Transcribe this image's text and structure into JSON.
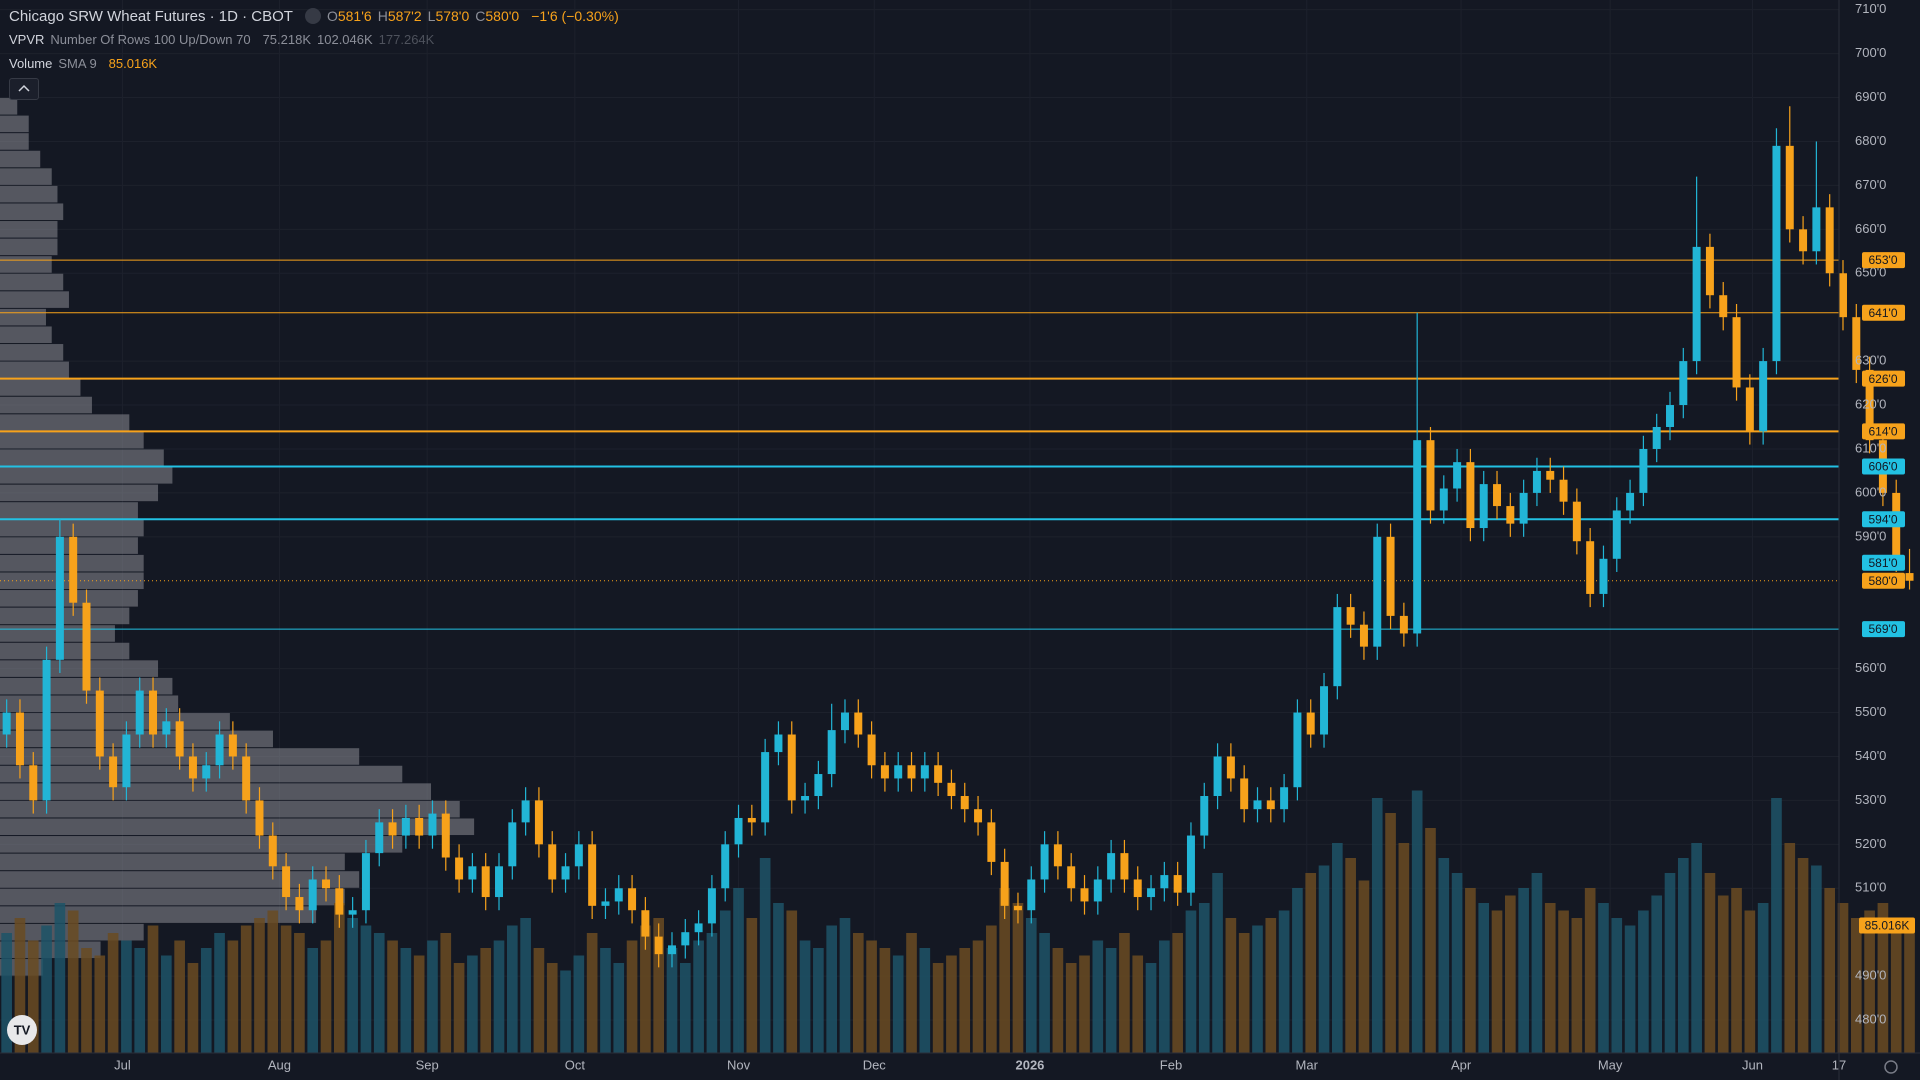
{
  "chart_data": {
    "type": "candlestick",
    "title": "Chicago SRW Wheat Futures · 1D · CBOT",
    "ohlc": [
      {
        "label": "O",
        "value": "581'6"
      },
      {
        "label": "H",
        "value": "587'2"
      },
      {
        "label": "L",
        "value": "578'0"
      },
      {
        "label": "C",
        "value": "580'0"
      }
    ],
    "change": "−1'6 (−0.30%)",
    "up_color": "#22b5d6",
    "down_color": "#f7a21b",
    "grid": true,
    "ylim": [
      472.5,
      712.2
    ],
    "yticks": [
      {
        "value": 710,
        "label": "710'0"
      },
      {
        "value": 700,
        "label": "700'0"
      },
      {
        "value": 690,
        "label": "690'0"
      },
      {
        "value": 680,
        "label": "680'0"
      },
      {
        "value": 670,
        "label": "670'0"
      },
      {
        "value": 660,
        "label": "660'0"
      },
      {
        "value": 650,
        "label": "650'0"
      },
      {
        "value": 630,
        "label": "630'0"
      },
      {
        "value": 620,
        "label": "620'0"
      },
      {
        "value": 610,
        "label": "610'0"
      },
      {
        "value": 600,
        "label": "600'0"
      },
      {
        "value": 590,
        "label": "590'0"
      },
      {
        "value": 560,
        "label": "560'0"
      },
      {
        "value": 550,
        "label": "550'0"
      },
      {
        "value": 540,
        "label": "540'0"
      },
      {
        "value": 530,
        "label": "530'0"
      },
      {
        "value": 520,
        "label": "520'0"
      },
      {
        "value": 510,
        "label": "510'0"
      },
      {
        "value": 490,
        "label": "490'0"
      },
      {
        "value": 480,
        "label": "480'0"
      }
    ],
    "xlim": [
      -0.5,
      137.7
    ],
    "xticks": [
      {
        "value": 8.7,
        "label": "Jul"
      },
      {
        "value": 20.5,
        "label": "Aug"
      },
      {
        "value": 31.6,
        "label": "Sep"
      },
      {
        "value": 42.7,
        "label": "Oct"
      },
      {
        "value": 55,
        "label": "Nov"
      },
      {
        "value": 65.2,
        "label": "Dec"
      },
      {
        "value": 76.9,
        "label": "2026"
      },
      {
        "value": 87.5,
        "label": "Feb"
      },
      {
        "value": 97.7,
        "label": "Mar"
      },
      {
        "value": 109.3,
        "label": "Apr"
      },
      {
        "value": 120.5,
        "label": "May"
      },
      {
        "value": 131.2,
        "label": "Jun"
      },
      {
        "value": 137.7,
        "label": "17"
      }
    ],
    "open": [
      545,
      550,
      538,
      530,
      562,
      590,
      575,
      555,
      540,
      533,
      545,
      555,
      545,
      548,
      540,
      535,
      538,
      545,
      540,
      530,
      522,
      515,
      508,
      505,
      512,
      510,
      504,
      505,
      518,
      525,
      522,
      526,
      522,
      527,
      517,
      512,
      515,
      508,
      515,
      525,
      530,
      520,
      512,
      515,
      520,
      506,
      507,
      510,
      505,
      499,
      495,
      497,
      500,
      502,
      510,
      520,
      526,
      525,
      541,
      545,
      530,
      531,
      536,
      546,
      550,
      545,
      538,
      535,
      538,
      535,
      538,
      534,
      531,
      528,
      525,
      516,
      506,
      505,
      512,
      520,
      515,
      510,
      507,
      512,
      518,
      512,
      508,
      510,
      513,
      509,
      522,
      531,
      540,
      535,
      528,
      530,
      528,
      533,
      550,
      545,
      556,
      574,
      570,
      565,
      590,
      572,
      568,
      612,
      596,
      601,
      607,
      592,
      602,
      597,
      593,
      600,
      605,
      603,
      598,
      589,
      577,
      585,
      596,
      600,
      610,
      615,
      620,
      630,
      656,
      645,
      640,
      624,
      614,
      630,
      679,
      660,
      655,
      665,
      650,
      640,
      628,
      612,
      600,
      581.75
    ],
    "high": [
      553,
      553,
      541,
      565,
      594,
      593,
      578,
      558,
      543,
      548,
      558,
      558,
      551,
      551,
      543,
      541,
      548,
      548,
      543,
      533,
      525,
      518,
      511,
      515,
      515,
      513,
      508,
      521,
      528,
      528,
      529,
      529,
      530,
      530,
      520,
      518,
      518,
      518,
      528,
      533,
      533,
      523,
      518,
      523,
      523,
      510,
      513,
      513,
      508,
      502,
      500,
      503,
      505,
      513,
      523,
      529,
      529,
      544,
      548,
      548,
      534,
      539,
      552,
      553,
      553,
      548,
      541,
      541,
      541,
      541,
      541,
      537,
      534,
      531,
      528,
      519,
      509,
      515,
      523,
      523,
      518,
      513,
      515,
      521,
      521,
      515,
      513,
      516,
      516,
      525,
      534,
      543,
      543,
      538,
      533,
      533,
      536,
      553,
      553,
      559,
      577,
      577,
      573,
      593,
      593,
      575,
      641,
      615,
      604,
      610,
      610,
      605,
      605,
      600,
      603,
      608,
      608,
      606,
      601,
      592,
      588,
      599,
      603,
      613,
      618,
      623,
      633,
      672,
      659,
      648,
      643,
      627,
      633,
      683,
      688,
      663,
      680,
      668,
      653,
      643,
      631,
      615,
      603,
      587.25
    ],
    "low": [
      542,
      535,
      527,
      527,
      559,
      572,
      552,
      537,
      530,
      530,
      542,
      542,
      542,
      537,
      532,
      532,
      535,
      537,
      527,
      519,
      512,
      505,
      502,
      502,
      507,
      501,
      501,
      502,
      515,
      519,
      519,
      519,
      519,
      514,
      509,
      509,
      505,
      505,
      512,
      522,
      517,
      509,
      509,
      512,
      503,
      503,
      504,
      502,
      496,
      492,
      492,
      494,
      497,
      499,
      507,
      517,
      522,
      522,
      538,
      527,
      527,
      528,
      533,
      543,
      542,
      535,
      532,
      532,
      532,
      532,
      531,
      528,
      525,
      522,
      513,
      503,
      502,
      502,
      509,
      512,
      507,
      504,
      504,
      509,
      509,
      505,
      505,
      507,
      506,
      506,
      519,
      528,
      532,
      525,
      525,
      525,
      525,
      530,
      542,
      542,
      553,
      567,
      562,
      562,
      569,
      565,
      565,
      593,
      593,
      598,
      589,
      589,
      594,
      590,
      590,
      597,
      600,
      595,
      586,
      574,
      574,
      582,
      593,
      597,
      607,
      612,
      617,
      627,
      642,
      637,
      621,
      611,
      611,
      627,
      657,
      652,
      652,
      647,
      637,
      625,
      609,
      597,
      582,
      578
    ],
    "close": [
      550,
      538,
      530,
      562,
      590,
      575,
      555,
      540,
      533,
      545,
      555,
      545,
      548,
      540,
      535,
      538,
      545,
      540,
      530,
      522,
      515,
      508,
      505,
      512,
      510,
      504,
      505,
      518,
      525,
      522,
      526,
      522,
      527,
      517,
      512,
      515,
      508,
      515,
      525,
      530,
      520,
      512,
      515,
      520,
      506,
      507,
      510,
      505,
      499,
      495,
      497,
      500,
      502,
      510,
      520,
      526,
      525,
      541,
      545,
      530,
      531,
      536,
      546,
      550,
      545,
      538,
      535,
      538,
      535,
      538,
      534,
      531,
      528,
      525,
      516,
      506,
      505,
      512,
      520,
      515,
      510,
      507,
      512,
      518,
      512,
      508,
      510,
      513,
      509,
      522,
      531,
      540,
      535,
      528,
      530,
      528,
      533,
      550,
      545,
      556,
      574,
      570,
      565,
      590,
      572,
      568,
      612,
      596,
      601,
      607,
      592,
      602,
      597,
      593,
      600,
      605,
      603,
      598,
      589,
      577,
      585,
      596,
      600,
      610,
      615,
      620,
      630,
      656,
      645,
      640,
      624,
      614,
      630,
      679,
      660,
      655,
      665,
      650,
      640,
      628,
      612,
      600,
      585,
      580
    ],
    "levels": [
      {
        "value": 653,
        "label": "653'0",
        "color": "#f7a21b",
        "style": "solid",
        "width": 1
      },
      {
        "value": 641,
        "label": "641'0",
        "color": "#f7a21b",
        "style": "solid",
        "width": 1
      },
      {
        "value": 626,
        "label": "626'0",
        "color": "#f7a21b",
        "style": "solid",
        "width": 2
      },
      {
        "value": 614,
        "label": "614'0",
        "color": "#f7a21b",
        "style": "solid",
        "width": 2
      },
      {
        "value": 606,
        "label": "606'0",
        "color": "#22c1e3",
        "style": "solid",
        "width": 2
      },
      {
        "value": 594,
        "label": "594'0",
        "color": "#22c1e3",
        "style": "solid",
        "width": 2
      },
      {
        "value": 581,
        "label": "581'0",
        "color": "#22c1e3",
        "style": "none",
        "width": 1
      },
      {
        "value": 580,
        "label": "580'0",
        "color": "#f7a21b",
        "style": "dotted",
        "width": 1
      },
      {
        "value": 569,
        "label": "569'0",
        "color": "#22c1e3",
        "style": "solid",
        "width": 1
      }
    ],
    "volume": {
      "name": "Volume",
      "indicator": "SMA 9",
      "last_label": "85.016K",
      "ylim": [
        0,
        702
      ],
      "up_color": "#1d5367",
      "down_color": "#6a4b22",
      "values": [
        80,
        90,
        75,
        85,
        100,
        95,
        70,
        65,
        80,
        75,
        70,
        85,
        65,
        75,
        60,
        70,
        80,
        75,
        85,
        90,
        95,
        85,
        80,
        70,
        75,
        100,
        90,
        85,
        80,
        75,
        70,
        65,
        75,
        80,
        60,
        65,
        70,
        75,
        85,
        90,
        70,
        60,
        55,
        65,
        80,
        70,
        60,
        75,
        85,
        90,
        70,
        60,
        75,
        80,
        95,
        110,
        90,
        130,
        100,
        95,
        75,
        70,
        85,
        90,
        80,
        75,
        70,
        65,
        80,
        70,
        60,
        65,
        70,
        75,
        85,
        110,
        100,
        90,
        80,
        70,
        60,
        65,
        75,
        70,
        80,
        65,
        60,
        75,
        80,
        95,
        100,
        120,
        90,
        80,
        85,
        90,
        95,
        110,
        120,
        125,
        140,
        130,
        115,
        170,
        160,
        140,
        175,
        150,
        130,
        120,
        110,
        100,
        95,
        105,
        110,
        120,
        100,
        95,
        90,
        110,
        100,
        90,
        85,
        95,
        105,
        120,
        130,
        140,
        120,
        105,
        110,
        95,
        100,
        170,
        140,
        130,
        125,
        110,
        100,
        90,
        95,
        100,
        90,
        85.016
      ]
    },
    "vpvr": {
      "name": "VPVR",
      "settings": "Number Of Rows 100 Up/Down 70",
      "up": "75.218K",
      "down": "102.046K",
      "total": "177.264K",
      "color": "#8a8d94",
      "xlim": [
        0,
        640
      ],
      "prices": [
        490,
        494,
        498,
        502,
        506,
        510,
        514,
        518,
        522,
        526,
        530,
        534,
        538,
        542,
        546,
        550,
        554,
        558,
        562,
        566,
        570,
        574,
        578,
        582,
        586,
        590,
        594,
        598,
        602,
        606,
        610,
        614,
        618,
        622,
        626,
        630,
        634,
        638,
        642,
        646,
        650,
        654,
        658,
        662,
        666,
        670,
        674,
        678,
        682,
        686
      ],
      "values": [
        15,
        35,
        50,
        110,
        120,
        125,
        120,
        140,
        165,
        160,
        150,
        140,
        125,
        95,
        80,
        62,
        60,
        55,
        45,
        40,
        45,
        48,
        50,
        50,
        48,
        50,
        48,
        55,
        60,
        57,
        50,
        45,
        32,
        28,
        24,
        22,
        18,
        16,
        24,
        22,
        18,
        20,
        20,
        22,
        20,
        18,
        14,
        10,
        10,
        6
      ]
    }
  }
}
